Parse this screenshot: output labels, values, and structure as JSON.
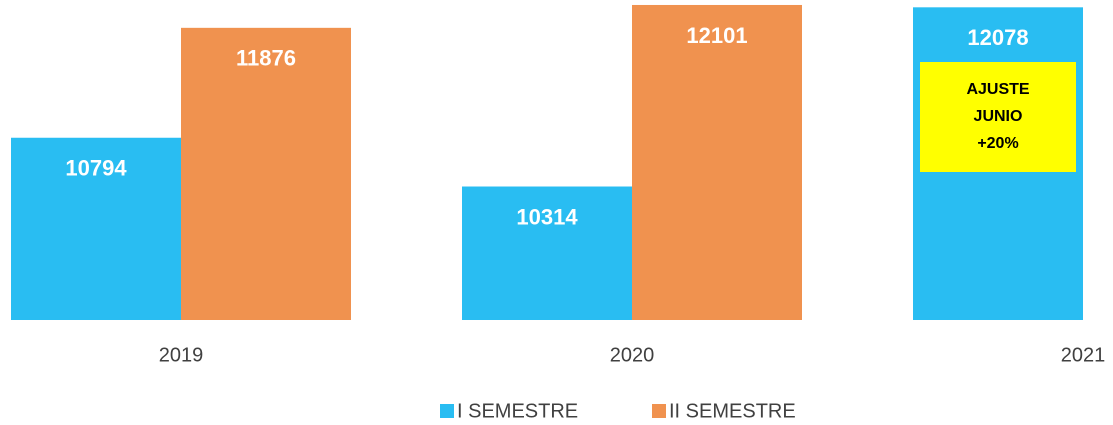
{
  "chart_data": {
    "type": "bar",
    "categories": [
      "2019",
      "2020",
      "2021"
    ],
    "series": [
      {
        "name": "I SEMESTRE",
        "color": "#29bdf2",
        "values": [
          10794,
          10314,
          12078
        ]
      },
      {
        "name": "II SEMESTRE",
        "color": "#f0924f",
        "values": [
          11876,
          12101,
          null
        ]
      }
    ],
    "ylim": [
      9000,
      12150
    ],
    "annotation": {
      "lines": [
        "AJUSTE",
        "JUNIO",
        "+20%"
      ],
      "color": "#ffff00"
    },
    "legend": "bottom"
  }
}
